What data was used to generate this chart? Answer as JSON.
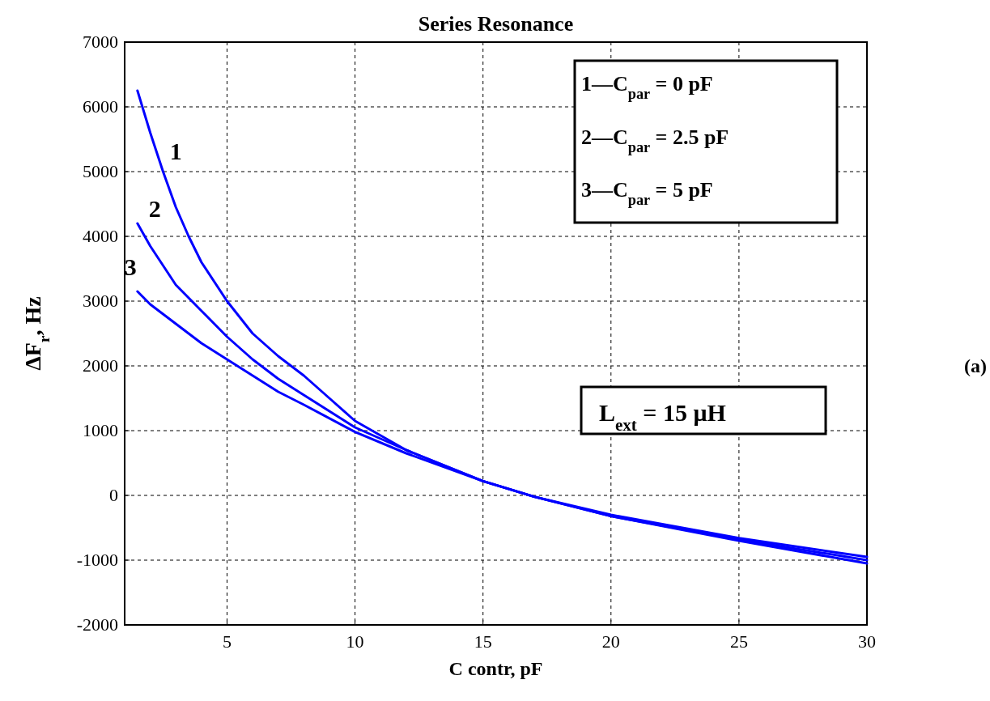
{
  "chart_data": {
    "type": "line",
    "title": "Series Resonance",
    "xlabel": "C contr, pF",
    "ylabel": "ΔF$_{r}$, Hz",
    "xlim": [
      1,
      30
    ],
    "xticks": [
      5,
      10,
      15,
      20,
      25,
      30
    ],
    "ylim": [
      -2000,
      7000
    ],
    "yticks": [
      -2000,
      -1000,
      0,
      1000,
      2000,
      3000,
      4000,
      5000,
      6000,
      7000
    ],
    "grid": true,
    "line_style": "solid",
    "annotations": [
      "1—C$_{par}$ = 0 pF",
      "2—C$_{par}$ = 2.5 pF",
      "3—C$_{par}$ = 5 pF",
      "L$_{ext}$ = 15 μH",
      "(a)"
    ],
    "series": [
      {
        "name": "1",
        "color": "#0000ff",
        "x": [
          1.5,
          2,
          2.5,
          3,
          3.5,
          4,
          5,
          6,
          7,
          8,
          9,
          10,
          12,
          15,
          17,
          20,
          25,
          30
        ],
        "values": [
          6250,
          5600,
          5000,
          4450,
          4000,
          3600,
          3000,
          2500,
          2150,
          1850,
          1500,
          1150,
          700,
          220,
          -20,
          -320,
          -700,
          -1050
        ]
      },
      {
        "name": "2",
        "color": "#0000ff",
        "x": [
          1.5,
          2,
          2.5,
          3,
          3.5,
          4,
          5,
          6,
          7,
          8,
          10,
          12,
          15,
          17,
          20,
          25,
          30
        ],
        "values": [
          4200,
          3850,
          3550,
          3250,
          3050,
          2850,
          2450,
          2100,
          1800,
          1550,
          1050,
          700,
          220,
          -20,
          -320,
          -680,
          -1000
        ]
      },
      {
        "name": "3",
        "color": "#0000ff",
        "x": [
          1.5,
          2,
          3,
          4,
          5,
          6,
          7,
          8,
          10,
          12,
          15,
          17,
          20,
          25,
          30
        ],
        "values": [
          3150,
          2950,
          2650,
          2350,
          2100,
          1850,
          1600,
          1400,
          980,
          650,
          220,
          -20,
          -300,
          -660,
          -950
        ]
      }
    ]
  }
}
